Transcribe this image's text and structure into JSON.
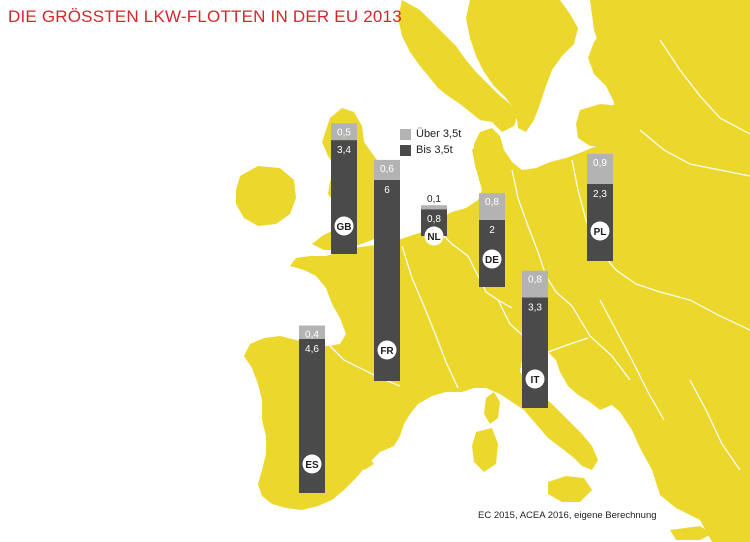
{
  "header": {
    "title": "DIE GRÖSSTEN LKW-FLOTTEN IN DER EU 2013"
  },
  "footer": {
    "source": "EC 2015, ACEA 2016, eigene Berechnung"
  },
  "colors": {
    "title": "#d7262b",
    "map_land": "#ecd82c",
    "map_border": "#ffffff",
    "sea": "#ffffff",
    "over_3_5t": "#b3b3b3",
    "under_3_5t": "#4a4a4a"
  },
  "chart_data": {
    "type": "bar",
    "title": "DIE GRÖSSTEN LKW-FLOTTEN IN DER EU 2013",
    "legend": {
      "placement": "top-center",
      "entries": [
        "Über 3,5t",
        "Bis 3,5t"
      ]
    },
    "categories": [
      "GB",
      "FR",
      "NL",
      "DE",
      "ES",
      "IT",
      "PL"
    ],
    "series": [
      {
        "name": "Über 3,5t",
        "values": [
          0.5,
          0.6,
          0.1,
          0.8,
          0.4,
          0.8,
          0.9
        ],
        "labels": [
          "0,5",
          "0,6",
          "0,1",
          "0,8",
          "0,4",
          "0,8",
          "0,9"
        ]
      },
      {
        "name": "Bis 3,5t",
        "values": [
          3.4,
          6,
          0.8,
          2,
          4.6,
          3.3,
          2.3
        ],
        "labels": [
          "3,4",
          "6",
          "0,8",
          "2",
          "4,6",
          "3,3",
          "2,3"
        ]
      }
    ],
    "stacked": true,
    "grid": false
  }
}
